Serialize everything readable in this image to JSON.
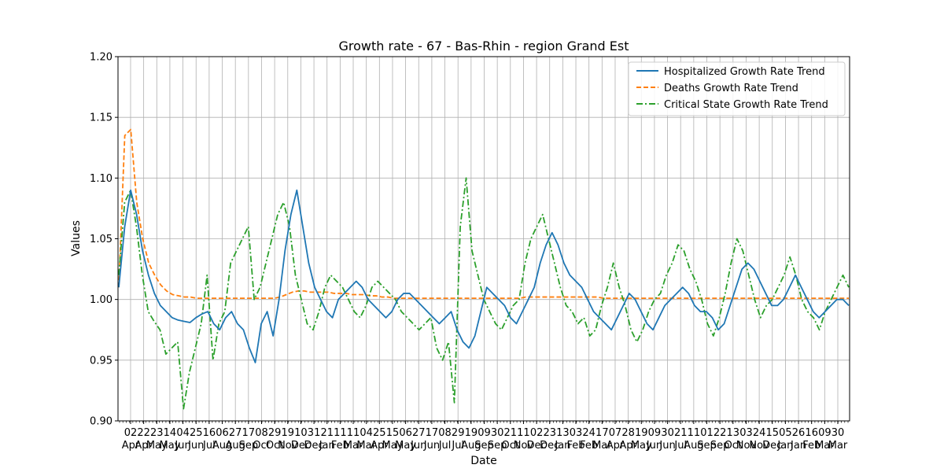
{
  "chart_data": {
    "type": "line",
    "title": "Growth rate - 67 - Bas-Rhin - region Grand Est",
    "xlabel": "Date",
    "ylabel": "Values",
    "ylim": [
      0.9,
      1.2
    ],
    "yticks": [
      "0.90",
      "0.95",
      "1.00",
      "1.05",
      "1.10",
      "1.15",
      "1.20"
    ],
    "grid": true,
    "legend_position": "top-right",
    "x_tick_labels": [
      {
        "day": "02",
        "month": "Apr"
      },
      {
        "day": "22",
        "month": "Apr"
      },
      {
        "day": "23",
        "month": "May"
      },
      {
        "day": "14",
        "month": "May"
      },
      {
        "day": "04",
        "month": "Jun"
      },
      {
        "day": "25",
        "month": "Jun"
      },
      {
        "day": "16",
        "month": "Jul"
      },
      {
        "day": "06",
        "month": "Aug"
      },
      {
        "day": "27",
        "month": "Aug"
      },
      {
        "day": "17",
        "month": "Sep"
      },
      {
        "day": "08",
        "month": "Oct"
      },
      {
        "day": "29",
        "month": "Oct"
      },
      {
        "day": "19",
        "month": "Nov"
      },
      {
        "day": "10",
        "month": "Dec"
      },
      {
        "day": "31",
        "month": "Dec"
      },
      {
        "day": "21",
        "month": "Jan"
      },
      {
        "day": "11",
        "month": "Feb"
      },
      {
        "day": "11",
        "month": "Mar"
      },
      {
        "day": "04",
        "month": "Mar"
      },
      {
        "day": "25",
        "month": "Apr"
      },
      {
        "day": "15",
        "month": "May"
      },
      {
        "day": "06",
        "month": "May"
      },
      {
        "day": "27",
        "month": "Jun"
      },
      {
        "day": "17",
        "month": "Jun"
      },
      {
        "day": "08",
        "month": "Jul"
      },
      {
        "day": "29",
        "month": "Jul"
      },
      {
        "day": "19",
        "month": "Aug"
      },
      {
        "day": "09",
        "month": "Sep"
      },
      {
        "day": "30",
        "month": "Sep"
      },
      {
        "day": "21",
        "month": "Oct"
      },
      {
        "day": "11",
        "month": "Nov"
      },
      {
        "day": "02",
        "month": "Dec"
      },
      {
        "day": "23",
        "month": "Dec"
      },
      {
        "day": "13",
        "month": "Jan"
      },
      {
        "day": "03",
        "month": "Feb"
      },
      {
        "day": "24",
        "month": "Feb"
      },
      {
        "day": "17",
        "month": "Mar"
      },
      {
        "day": "07",
        "month": "Apr"
      },
      {
        "day": "28",
        "month": "Apr"
      },
      {
        "day": "19",
        "month": "May"
      },
      {
        "day": "09",
        "month": "Jun"
      },
      {
        "day": "30",
        "month": "Jun"
      },
      {
        "day": "21",
        "month": "Jul"
      },
      {
        "day": "11",
        "month": "Aug"
      },
      {
        "day": "01",
        "month": "Sep"
      },
      {
        "day": "22",
        "month": "Sep"
      },
      {
        "day": "13",
        "month": "Oct"
      },
      {
        "day": "03",
        "month": "Nov"
      },
      {
        "day": "24",
        "month": "Nov"
      },
      {
        "day": "15",
        "month": "Dec"
      },
      {
        "day": "05",
        "month": "Jan"
      },
      {
        "day": "26",
        "month": "Jan"
      },
      {
        "day": "16",
        "month": "Feb"
      },
      {
        "day": "09",
        "month": "Mar"
      },
      {
        "day": "30",
        "month": "Mar"
      }
    ],
    "series": [
      {
        "name": "Hospitalized Growth Rate Trend",
        "color": "#1f77b4",
        "dash": "solid",
        "values": [
          1.01,
          1.06,
          1.09,
          1.07,
          1.04,
          1.02,
          1.005,
          0.995,
          0.99,
          0.985,
          0.983,
          0.982,
          0.981,
          0.985,
          0.988,
          0.99,
          0.98,
          0.975,
          0.985,
          0.99,
          0.98,
          0.975,
          0.96,
          0.948,
          0.98,
          0.99,
          0.97,
          1.0,
          1.04,
          1.07,
          1.09,
          1.06,
          1.03,
          1.01,
          1.0,
          0.99,
          0.985,
          1.0,
          1.005,
          1.01,
          1.015,
          1.01,
          1.0,
          0.995,
          0.99,
          0.985,
          0.99,
          1.0,
          1.005,
          1.005,
          1.0,
          0.995,
          0.99,
          0.985,
          0.98,
          0.985,
          0.99,
          0.975,
          0.965,
          0.96,
          0.97,
          0.99,
          1.01,
          1.005,
          1.0,
          0.995,
          0.985,
          0.98,
          0.99,
          1.0,
          1.01,
          1.03,
          1.045,
          1.055,
          1.045,
          1.03,
          1.02,
          1.015,
          1.01,
          1.0,
          0.99,
          0.985,
          0.98,
          0.975,
          0.985,
          0.995,
          1.005,
          1.0,
          0.99,
          0.98,
          0.975,
          0.985,
          0.995,
          1.0,
          1.005,
          1.01,
          1.005,
          0.995,
          0.99,
          0.99,
          0.985,
          0.975,
          0.98,
          0.995,
          1.01,
          1.025,
          1.03,
          1.025,
          1.015,
          1.005,
          0.995,
          0.995,
          1.0,
          1.01,
          1.02,
          1.01,
          1.0,
          0.99,
          0.985,
          0.99,
          0.995,
          1.0,
          1.0,
          0.995
        ]
      },
      {
        "name": "Deaths Growth Rate Trend",
        "color": "#ff7f0e",
        "dash": "dashed",
        "values": [
          1.01,
          1.135,
          1.14,
          1.08,
          1.05,
          1.03,
          1.02,
          1.012,
          1.007,
          1.004,
          1.003,
          1.002,
          1.002,
          1.001,
          1.001,
          1.001,
          1.001,
          1.001,
          1.001,
          1.001,
          1.001,
          1.001,
          1.001,
          1.001,
          1.001,
          1.001,
          1.001,
          1.002,
          1.004,
          1.006,
          1.007,
          1.007,
          1.006,
          1.006,
          1.006,
          1.006,
          1.005,
          1.005,
          1.005,
          1.004,
          1.004,
          1.004,
          1.003,
          1.003,
          1.002,
          1.002,
          1.001,
          1.001,
          1.001,
          1.001,
          1.001,
          1.001,
          1.001,
          1.001,
          1.001,
          1.001,
          1.001,
          1.001,
          1.001,
          1.001,
          1.001,
          1.001,
          1.001,
          1.001,
          1.001,
          1.001,
          1.001,
          1.001,
          1.002,
          1.002,
          1.002,
          1.002,
          1.002,
          1.002,
          1.002,
          1.002,
          1.002,
          1.002,
          1.002,
          1.002,
          1.002,
          1.001,
          1.001,
          1.001,
          1.001,
          1.001,
          1.001,
          1.001,
          1.001,
          1.001,
          1.001,
          1.001,
          1.001,
          1.001,
          1.001,
          1.001,
          1.001,
          1.001,
          1.001,
          1.001,
          1.001,
          1.001,
          1.001,
          1.001,
          1.001,
          1.001,
          1.001,
          1.001,
          1.001,
          1.001,
          1.001,
          1.001,
          1.001,
          1.001,
          1.001,
          1.001,
          1.001,
          1.001,
          1.001,
          1.001,
          1.001,
          1.001,
          1.001
        ]
      },
      {
        "name": "Critical State Growth Rate Trend",
        "color": "#2ca02c",
        "dash": "dashdot",
        "values": [
          1.02,
          1.08,
          1.09,
          1.06,
          1.02,
          0.99,
          0.982,
          0.975,
          0.955,
          0.96,
          0.965,
          0.91,
          0.94,
          0.96,
          0.98,
          1.02,
          0.95,
          0.98,
          0.99,
          1.03,
          1.04,
          1.05,
          1.06,
          1.0,
          1.01,
          1.03,
          1.05,
          1.07,
          1.08,
          1.06,
          1.02,
          1.0,
          0.98,
          0.975,
          0.99,
          1.01,
          1.02,
          1.015,
          1.01,
          1.0,
          0.99,
          0.985,
          0.995,
          1.01,
          1.015,
          1.01,
          1.005,
          1.0,
          0.99,
          0.985,
          0.98,
          0.975,
          0.98,
          0.985,
          0.96,
          0.95,
          0.965,
          0.915,
          1.06,
          1.1,
          1.04,
          1.02,
          1.0,
          0.99,
          0.98,
          0.975,
          0.985,
          0.995,
          1.0,
          1.03,
          1.05,
          1.06,
          1.07,
          1.05,
          1.03,
          1.01,
          0.995,
          0.99,
          0.98,
          0.985,
          0.97,
          0.975,
          0.995,
          1.01,
          1.03,
          1.01,
          0.995,
          0.975,
          0.965,
          0.975,
          0.99,
          1.0,
          1.005,
          1.02,
          1.03,
          1.045,
          1.04,
          1.025,
          1.015,
          1.0,
          0.98,
          0.97,
          0.985,
          1.005,
          1.03,
          1.05,
          1.04,
          1.02,
          1.0,
          0.985,
          0.995,
          1.0,
          1.01,
          1.02,
          1.035,
          1.02,
          1.0,
          0.99,
          0.985,
          0.975,
          0.99,
          1.0,
          1.01,
          1.02,
          1.01
        ]
      }
    ]
  }
}
